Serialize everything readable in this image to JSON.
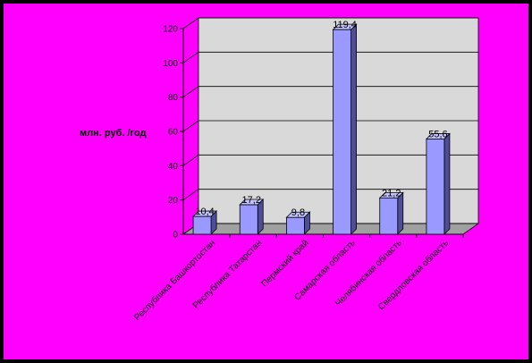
{
  "colors": {
    "background": "#ff00ff",
    "wall": "#d9d9d9",
    "floor": "#a0a0a0",
    "bar_front": "#9999ff",
    "bar_side": "#4d4d99",
    "bar_top": "#c4c4ff"
  },
  "chart_data": {
    "type": "bar",
    "ylabel": "млн. руб. /год",
    "ylim": [
      0,
      120
    ],
    "yticks": [
      "0",
      "20",
      "40",
      "60",
      "80",
      "100",
      "120"
    ],
    "grid": true,
    "legend": "none",
    "categories": [
      "Республика Башкортостан",
      "Республика Татарстан",
      "Пермский край",
      "Самарская область",
      "Челябинская область",
      "Свердловская область"
    ],
    "values": [
      10.4,
      17.2,
      9.8,
      119.4,
      21.2,
      55.6
    ],
    "value_labels": [
      "10,4",
      "17,2",
      "9,8",
      "119,4",
      "21,2",
      "55,6"
    ]
  }
}
